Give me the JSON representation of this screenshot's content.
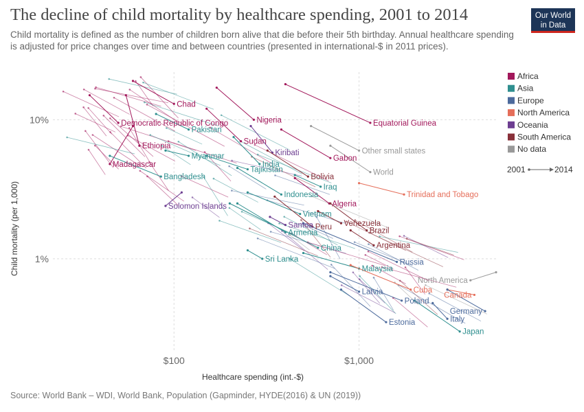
{
  "header": {
    "title": "The decline of child mortality by healthcare spending, 2001 to 2014",
    "subtitle": "Child mortality is defined as the number of children born alive that die before their 5th birthday. Annual healthcare spending is adjusted for price changes over time and between countries (presented in international-$ in 2011 prices).",
    "logo_line1": "Our World",
    "logo_line2": "in Data"
  },
  "footer": {
    "source": "Source: World Bank – WDI, World Bank, Population (Gapminder, HYDE(2016) & UN (2019))"
  },
  "chart_data": {
    "type": "scatter",
    "subtype": "connected-scatter (arrows from start year to end year)",
    "title": "The decline of child mortality by healthcare spending, 2001 to 2014",
    "xlabel": "Healthcare spending (int.-$)",
    "ylabel": "Child mortality (per 1,000)",
    "xscale": "log",
    "yscale": "log",
    "xlim": [
      20,
      5500
    ],
    "ylim": [
      0.22,
      22
    ],
    "xticks": [
      {
        "value": 100,
        "label": "$100"
      },
      {
        "value": 1000,
        "label": "$1,000"
      }
    ],
    "yticks": [
      {
        "value": 10,
        "label": "10%"
      },
      {
        "value": 1,
        "label": "1%"
      }
    ],
    "grid": true,
    "legend_position": "right",
    "legend": [
      {
        "name": "Africa",
        "color": "#a2185b"
      },
      {
        "name": "Asia",
        "color": "#2f8f8f"
      },
      {
        "name": "Europe",
        "color": "#4c6a9c"
      },
      {
        "name": "North America",
        "color": "#e56e5a"
      },
      {
        "name": "Oceania",
        "color": "#6d3e91"
      },
      {
        "name": "South America",
        "color": "#883039"
      },
      {
        "name": "No data",
        "color": "#999999"
      }
    ],
    "year_start": "2001",
    "year_end": "2014",
    "countries": [
      {
        "name": "Chad",
        "region": "Africa",
        "start": [
          60,
          19
        ],
        "end": [
          100,
          13
        ]
      },
      {
        "name": "Nigeria",
        "region": "Africa",
        "start": [
          170,
          17
        ],
        "end": [
          270,
          10
        ]
      },
      {
        "name": "Democratic Republic of Congo",
        "region": "Africa",
        "start": [
          35,
          15
        ],
        "end": [
          50,
          9.5
        ]
      },
      {
        "name": "Equatorial Guinea",
        "region": "Africa",
        "start": [
          400,
          18
        ],
        "end": [
          1150,
          9.5
        ]
      },
      {
        "name": "Pakistan",
        "region": "Asia",
        "start": [
          80,
          11
        ],
        "end": [
          120,
          8.5
        ]
      },
      {
        "name": "Sudan",
        "region": "Africa",
        "start": [
          150,
          12
        ],
        "end": [
          230,
          7
        ]
      },
      {
        "name": "Ethiopia",
        "region": "Africa",
        "start": [
          55,
          15
        ],
        "end": [
          65,
          6.5
        ]
      },
      {
        "name": "Kiribati",
        "region": "Oceania",
        "start": [
          260,
          9
        ],
        "end": [
          340,
          5.8
        ]
      },
      {
        "name": "Gabon",
        "region": "Africa",
        "start": [
          380,
          8.5
        ],
        "end": [
          700,
          5.3
        ]
      },
      {
        "name": "Myanmar",
        "region": "Asia",
        "start": [
          90,
          6
        ],
        "end": [
          120,
          5.5
        ]
      },
      {
        "name": "Madagascar",
        "region": "Africa",
        "start": [
          60,
          9
        ],
        "end": [
          45,
          4.8
        ]
      },
      {
        "name": "Other small states",
        "region": "No data",
        "start": [
          550,
          9
        ],
        "end": [
          1000,
          6
        ]
      },
      {
        "name": "India",
        "region": "Asia",
        "start": [
          210,
          7.5
        ],
        "end": [
          290,
          4.8
        ]
      },
      {
        "name": "World",
        "region": "No data",
        "start": [
          700,
          6.5
        ],
        "end": [
          1150,
          4.2
        ]
      },
      {
        "name": "Bangladesh",
        "region": "Asia",
        "start": [
          45,
          5.5
        ],
        "end": [
          85,
          3.9
        ]
      },
      {
        "name": "Tajikistan",
        "region": "Asia",
        "start": [
          150,
          5.5
        ],
        "end": [
          250,
          4.4
        ]
      },
      {
        "name": "Bolivia",
        "region": "South America",
        "start": [
          320,
          6
        ],
        "end": [
          530,
          3.9
        ]
      },
      {
        "name": "Iraq",
        "region": "Asia",
        "start": [
          450,
          4
        ],
        "end": [
          620,
          3.3
        ]
      },
      {
        "name": "Trinidad and Tobago",
        "region": "North America",
        "start": [
          1000,
          3.5
        ],
        "end": [
          1750,
          2.9
        ]
      },
      {
        "name": "Indonesia",
        "region": "Asia",
        "start": [
          220,
          4.5
        ],
        "end": [
          380,
          2.9
        ]
      },
      {
        "name": "Algeria",
        "region": "Africa",
        "start": [
          450,
          3.8
        ],
        "end": [
          690,
          2.5
        ]
      },
      {
        "name": "Solomon Islands",
        "region": "Oceania",
        "start": [
          110,
          3
        ],
        "end": [
          90,
          2.4
        ]
      },
      {
        "name": "Vietnam",
        "region": "Asia",
        "start": [
          250,
          3
        ],
        "end": [
          480,
          2.1
        ]
      },
      {
        "name": "Venezuela",
        "region": "South America",
        "start": [
          600,
          2.2
        ],
        "end": [
          800,
          1.8
        ]
      },
      {
        "name": "Samoa",
        "region": "Oceania",
        "start": [
          330,
          2
        ],
        "end": [
          400,
          1.75
        ]
      },
      {
        "name": "Peru",
        "region": "South America",
        "start": [
          350,
          2.8
        ],
        "end": [
          560,
          1.7
        ]
      },
      {
        "name": "Brazil",
        "region": "South America",
        "start": [
          700,
          2.5
        ],
        "end": [
          1100,
          1.6
        ]
      },
      {
        "name": "Armenia",
        "region": "Asia",
        "start": [
          220,
          2.5
        ],
        "end": [
          400,
          1.55
        ]
      },
      {
        "name": "Argentina",
        "region": "South America",
        "start": [
          900,
          1.6
        ],
        "end": [
          1200,
          1.25
        ]
      },
      {
        "name": "China",
        "region": "Asia",
        "start": [
          200,
          2.5
        ],
        "end": [
          600,
          1.2
        ]
      },
      {
        "name": "Sri Lanka",
        "region": "Asia",
        "start": [
          250,
          1.15
        ],
        "end": [
          300,
          1.0
        ]
      },
      {
        "name": "Russia",
        "region": "Europe",
        "start": [
          500,
          1.8
        ],
        "end": [
          1600,
          0.95
        ]
      },
      {
        "name": "Malaysia",
        "region": "Asia",
        "start": [
          500,
          1.1
        ],
        "end": [
          1000,
          0.85
        ]
      },
      {
        "name": "North America",
        "region": "No data",
        "start": [
          5500,
          0.8
        ],
        "end": [
          4000,
          0.7
        ]
      },
      {
        "name": "Cuba",
        "region": "North America",
        "start": [
          900,
          0.9
        ],
        "end": [
          1900,
          0.6
        ]
      },
      {
        "name": "Canada",
        "region": "North America",
        "start": [
          3000,
          0.6
        ],
        "end": [
          4200,
          0.55
        ]
      },
      {
        "name": "Latvia",
        "region": "Europe",
        "start": [
          700,
          0.75
        ],
        "end": [
          1000,
          0.58
        ]
      },
      {
        "name": "Poland",
        "region": "Europe",
        "start": [
          700,
          0.8
        ],
        "end": [
          1700,
          0.5
        ]
      },
      {
        "name": "Germany",
        "region": "Europe",
        "start": [
          3000,
          0.6
        ],
        "end": [
          4800,
          0.42
        ]
      },
      {
        "name": "Italy",
        "region": "Europe",
        "start": [
          2500,
          0.48
        ],
        "end": [
          3000,
          0.37
        ]
      },
      {
        "name": "Estonia",
        "region": "Europe",
        "start": [
          800,
          0.6
        ],
        "end": [
          1400,
          0.35
        ]
      },
      {
        "name": "Japan",
        "region": "Asia",
        "start": [
          2000,
          0.5
        ],
        "end": [
          3500,
          0.3
        ]
      }
    ]
  }
}
